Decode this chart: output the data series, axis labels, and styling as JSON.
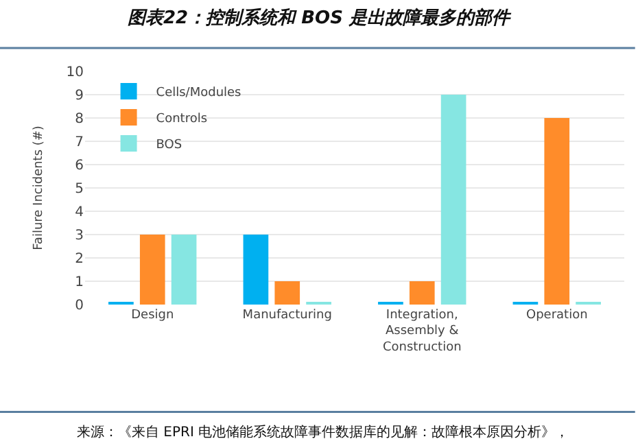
{
  "chart_data": {
    "type": "bar",
    "title": "图表22：控制系统和 BOS 是出故障最多的部件",
    "categories": [
      "Design",
      "Manufacturing",
      "Integration,\nAssembly &\nConstruction",
      "Operation"
    ],
    "series": [
      {
        "name": "Cells/Modules",
        "color": "#00b0f0",
        "values": [
          0.1,
          3,
          0.1,
          0.1
        ]
      },
      {
        "name": "Controls",
        "color": "#ff8c2a",
        "values": [
          3,
          1,
          1,
          8
        ]
      },
      {
        "name": "BOS",
        "color": "#86e6e2",
        "values": [
          3,
          0.1,
          9,
          0.1
        ]
      }
    ],
    "ylabel": "Failure Incidents (#)",
    "ylim": [
      0,
      10
    ],
    "yticks": [
      0,
      1,
      2,
      3,
      4,
      5,
      6,
      7,
      8,
      9,
      10
    ],
    "grid": "y",
    "legend": "top left",
    "annotations": [
      "来源：《来自 EPRI 电池储能系统故障事件数据库的见解：故障根本原因分析》，"
    ]
  }
}
